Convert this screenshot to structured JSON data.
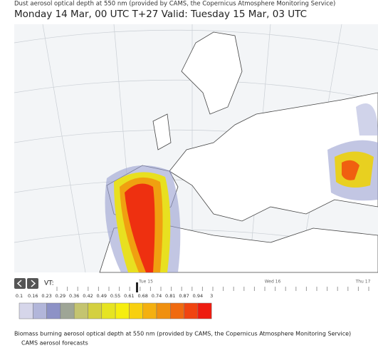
{
  "header": {
    "title": "Dust aerosol optical depth at 550 nm (provided by CAMS, the Copernicus Atmosphere Monitoring Service)",
    "subtitle": "Monday 14 Mar, 00 UTC T+27 Valid: Tuesday 15 Mar, 03 UTC"
  },
  "timeline": {
    "label": "VT:",
    "days": [
      "Tue 15",
      "Wed 16",
      "Thu 17"
    ]
  },
  "legend": {
    "labels": [
      "0.1",
      "0.16",
      "0.23",
      "0.29",
      "0.36",
      "0.42",
      "0.49",
      "0.55",
      "0.61",
      "0.68",
      "0.74",
      "0.81",
      "0.87",
      "0.94",
      "3"
    ],
    "colors": [
      "#d6d6ea",
      "#b2b6da",
      "#8d92c6",
      "#9ea596",
      "#c4c470",
      "#d4d040",
      "#e6e422",
      "#f6ee10",
      "#f8d010",
      "#f4b010",
      "#f09010",
      "#f06a10",
      "#f04410",
      "#ee1c10"
    ]
  },
  "footer": {
    "line1": "Biomass burning aerosol optical depth at 550 nm (provided by CAMS, the Copernicus Atmosphere Monitoring Service)",
    "line2": "CAMS aerosol forecasts"
  }
}
